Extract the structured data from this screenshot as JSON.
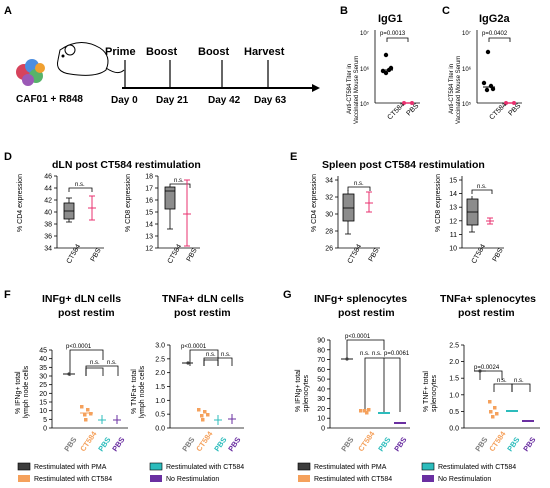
{
  "colors": {
    "pma": "#3d3d3d",
    "cd584_restim": "#f5a15c",
    "cd584": "#2cbcbc",
    "none": "#6a2fa1",
    "pbs_pink": "#e8306f",
    "ctrl_gray": "#808080",
    "box_gray": "#8c8c8c"
  },
  "panelA": {
    "label": "A",
    "adjuvant": "CAF01 + R848",
    "steps": [
      {
        "name": "Prime",
        "day": "Day 0"
      },
      {
        "name": "Boost",
        "day": "Day 21"
      },
      {
        "name": "Boost",
        "day": "Day 42"
      },
      {
        "name": "Harvest",
        "day": "Day 63"
      }
    ]
  },
  "panelB": {
    "label": "B",
    "title": "IgG1",
    "ylabel": "Anti-CT584 Titer in Vaccinated Mouse Serum",
    "pvalue": "p=0.0013",
    "yticks": [
      "10⁷",
      "10⁶",
      "10⁵"
    ],
    "categories": [
      "CT584",
      "PBS"
    ]
  },
  "panelC": {
    "label": "C",
    "title": "IgG2a",
    "ylabel": "Anti-CT584 Titer in Vaccinated Mouse Serum",
    "pvalue": "p=0.0402",
    "yticks": [
      "10⁷",
      "10⁶",
      "10⁵"
    ],
    "categories": [
      "CT584",
      "PBS"
    ]
  },
  "panelD": {
    "label": "D",
    "title": "dLN post CT584 restimulation",
    "left_ylabel": "% CD4 expression",
    "right_ylabel": "% CD8 expression",
    "ns": "n.s.",
    "left_yticks": [
      "46",
      "44",
      "42",
      "40",
      "38",
      "36",
      "34"
    ],
    "right_yticks": [
      "18",
      "17",
      "16",
      "15",
      "14",
      "13",
      "12"
    ],
    "categories": [
      "CT584",
      "PBS"
    ]
  },
  "panelE": {
    "label": "E",
    "title": "Spleen post CT584 restimulation",
    "left_ylabel": "% CD4 expression",
    "right_ylabel": "% CD8 expression",
    "ns": "n.s.",
    "left_yticks": [
      "34",
      "32",
      "30",
      "28",
      "26"
    ],
    "right_yticks": [
      "15",
      "14",
      "13",
      "12",
      "11",
      "10"
    ],
    "categories": [
      "CT584",
      "PBS"
    ]
  },
  "panelF": {
    "label": "F",
    "left_title_1": "INFg+ dLN cells",
    "left_title_2": "post restim",
    "right_title_1": "TNFa+ dLN cells",
    "right_title_2": "post restim",
    "left_ylabel_1": "% IFNg+ total",
    "left_ylabel_2": "lymph node cells",
    "right_ylabel_1": "% TNFa+ total",
    "right_ylabel_2": "lymph node cells",
    "pvalue": "p<0.0001",
    "ns": "n.s.",
    "left_yticks": [
      "45",
      "40",
      "35",
      "30",
      "25",
      "20",
      "15",
      "10",
      "5",
      "0"
    ],
    "right_yticks": [
      "3.0",
      "2.5",
      "2.0",
      "1.5",
      "1.0",
      "0.5",
      "0.0"
    ],
    "categories": [
      "PBS",
      "CT584",
      "PBS",
      "PBS"
    ]
  },
  "panelG": {
    "label": "G",
    "left_title_1": "INFg+ splenocytes",
    "left_title_2": "post restim",
    "right_title_1": "TNFa+ splenocytes",
    "right_title_2": "post restim",
    "left_ylabel_1": "% IFNg+ total",
    "left_ylabel_2": "splenocytes",
    "right_ylabel_1": "% TNF+ total",
    "right_ylabel_2": "splenocytes",
    "pvalue_left": "p<0.0001",
    "pvalue_left_b": "p=0.0061",
    "pvalue_right": "p=0.0024",
    "ns": "n.s.",
    "left_yticks": [
      "90",
      "80",
      "70",
      "60",
      "50",
      "40",
      "30",
      "20",
      "10",
      "0"
    ],
    "right_yticks": [
      "2.5",
      "2.0",
      "1.5",
      "1.0",
      "0.5",
      "0.0"
    ],
    "categories": [
      "PBS",
      "CT584",
      "PBS",
      "PBS"
    ]
  },
  "legend": {
    "pma": "Restimulated with PMA",
    "ct584_orange": "Restimulated with CT584",
    "ct584_teal": "Restimulated with CT584",
    "none": "No Restimulation"
  }
}
